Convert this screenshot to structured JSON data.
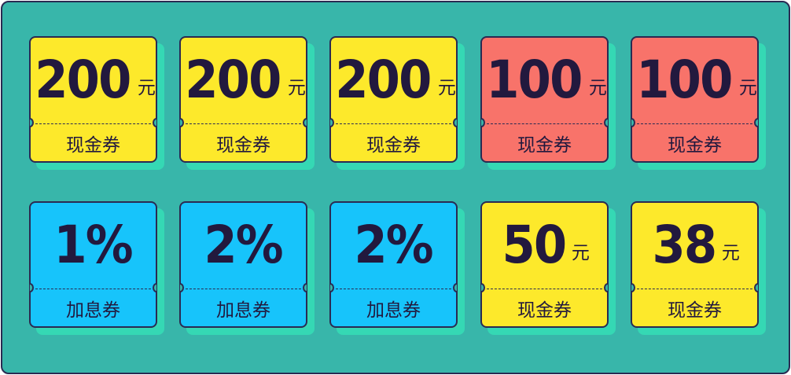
{
  "colors": {
    "background": "#38b6aa",
    "border": "#2a2a52",
    "shadow": "#35d8b4",
    "yellow": "#fde92b",
    "red": "#f8736a",
    "blue": "#17c4fb",
    "text": "#22193e"
  },
  "coupons": [
    {
      "amount": "200",
      "unit": "元",
      "label": "现金券",
      "color": "yellow"
    },
    {
      "amount": "200",
      "unit": "元",
      "label": "现金券",
      "color": "yellow"
    },
    {
      "amount": "200",
      "unit": "元",
      "label": "现金券",
      "color": "yellow"
    },
    {
      "amount": "100",
      "unit": "元",
      "label": "现金券",
      "color": "red"
    },
    {
      "amount": "100",
      "unit": "元",
      "label": "现金券",
      "color": "red"
    },
    {
      "amount": "1%",
      "unit": "",
      "label": "加息券",
      "color": "blue"
    },
    {
      "amount": "2%",
      "unit": "",
      "label": "加息券",
      "color": "blue"
    },
    {
      "amount": "2%",
      "unit": "",
      "label": "加息券",
      "color": "blue"
    },
    {
      "amount": "50",
      "unit": "元",
      "label": "现金券",
      "color": "yellow"
    },
    {
      "amount": "38",
      "unit": "元",
      "label": "现金券",
      "color": "yellow"
    }
  ]
}
